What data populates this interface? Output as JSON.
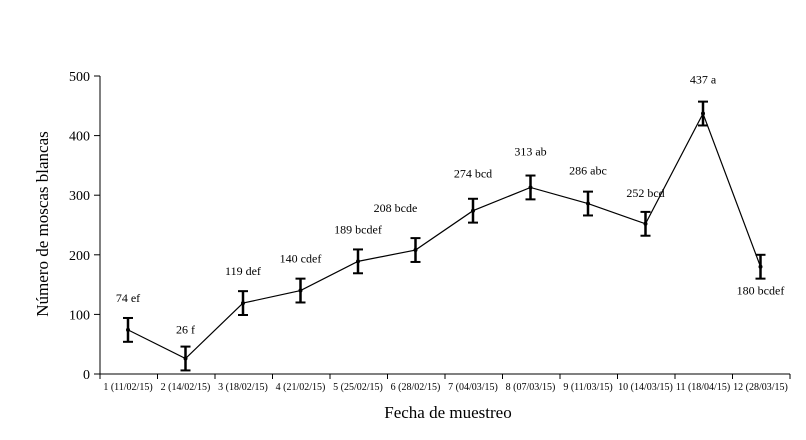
{
  "chart_data": {
    "type": "line",
    "xlabel": "Fecha de muestreo",
    "ylabel": "Número  de moscas blancas",
    "ylim": [
      0,
      500
    ],
    "yticks": [
      0,
      100,
      200,
      300,
      400,
      500
    ],
    "grid": false,
    "legend": "none",
    "categories": [
      "1 (11/02/15)",
      "2 (14/02/15)",
      "3 (18/02/15)",
      "4 (21/02/15)",
      "5 (25/02/15)",
      "6 (28/02/15)",
      "7 (04/03/15)",
      "8 (07/03/15)",
      "9 (11/03/15)",
      "10 (14/03/15)",
      "11 (18/04/15)",
      "12 (28/03/15)"
    ],
    "series": [
      {
        "values": [
          74,
          26,
          119,
          140,
          189,
          208,
          274,
          313,
          286,
          252,
          437,
          180
        ],
        "error": [
          20,
          20,
          20,
          20,
          20,
          20,
          20,
          20,
          20,
          20,
          20,
          20
        ],
        "labels": [
          "74 ef",
          "26 f",
          "119 def",
          "140 cdef",
          "189 bcdef",
          "208 bcde",
          "274 bcd",
          "313 ab",
          "286 abc",
          "252 bcd",
          "437 a",
          "180 bcdef"
        ],
        "color": "#000000"
      }
    ]
  }
}
